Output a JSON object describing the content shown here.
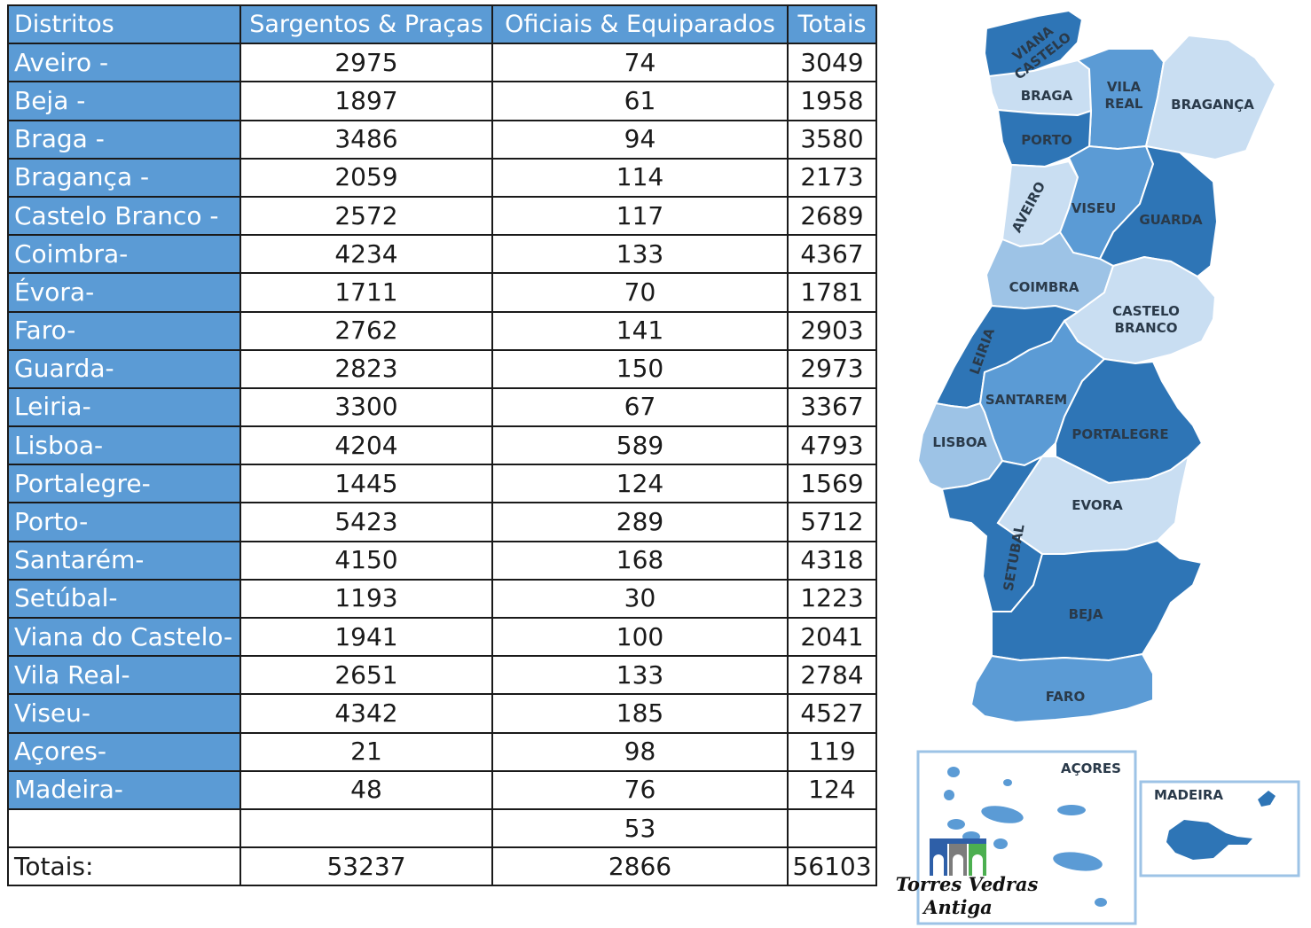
{
  "table": {
    "headers": [
      "Distritos",
      "Sargentos & Praças",
      "Oficiais & Equiparados",
      "Totais"
    ],
    "rows": [
      {
        "district": "Aveiro -",
        "sargentos": "2975",
        "oficiais": "74",
        "total": "3049"
      },
      {
        "district": "Beja -",
        "sargentos": "1897",
        "oficiais": "61",
        "total": "1958"
      },
      {
        "district": "Braga -",
        "sargentos": "3486",
        "oficiais": "94",
        "total": "3580"
      },
      {
        "district": "Bragança -",
        "sargentos": "2059",
        "oficiais": "114",
        "total": "2173"
      },
      {
        "district": "Castelo Branco -",
        "sargentos": "2572",
        "oficiais": "117",
        "total": "2689"
      },
      {
        "district": "Coimbra-",
        "sargentos": "4234",
        "oficiais": "133",
        "total": "4367"
      },
      {
        "district": "Évora-",
        "sargentos": "1711",
        "oficiais": "70",
        "total": "1781"
      },
      {
        "district": "Faro-",
        "sargentos": "2762",
        "oficiais": "141",
        "total": "2903"
      },
      {
        "district": "Guarda-",
        "sargentos": "2823",
        "oficiais": "150",
        "total": "2973"
      },
      {
        "district": "Leiria-",
        "sargentos": "3300",
        "oficiais": "67",
        "total": "3367"
      },
      {
        "district": "Lisboa-",
        "sargentos": "4204",
        "oficiais": "589",
        "total": "4793"
      },
      {
        "district": "Portalegre-",
        "sargentos": "1445",
        "oficiais": "124",
        "total": "1569"
      },
      {
        "district": "Porto-",
        "sargentos": "5423",
        "oficiais": "289",
        "total": "5712"
      },
      {
        "district": "Santarém-",
        "sargentos": "4150",
        "oficiais": "168",
        "total": "4318"
      },
      {
        "district": "Setúbal-",
        "sargentos": "1193",
        "oficiais": "30",
        "total": "1223"
      },
      {
        "district": "Viana do Castelo-",
        "sargentos": "1941",
        "oficiais": "100",
        "total": "2041"
      },
      {
        "district": "Vila Real-",
        "sargentos": "2651",
        "oficiais": "133",
        "total": "2784"
      },
      {
        "district": "Viseu-",
        "sargentos": "4342",
        "oficiais": "185",
        "total": "4527"
      },
      {
        "district": "Açores-",
        "sargentos": "21",
        "oficiais": "98",
        "total": "119"
      },
      {
        "district": "Madeira-",
        "sargentos": "48",
        "oficiais": "76",
        "total": "124"
      }
    ],
    "extra_row": {
      "district": "",
      "sargentos": "",
      "oficiais": "53",
      "total": ""
    },
    "totals": {
      "label": "Totais:",
      "sargentos": "53237",
      "oficiais": "2866",
      "total": "56103"
    }
  },
  "map": {
    "labels": {
      "viana_1": "VIANA",
      "viana_2": "CASTELO",
      "braga": "BRAGA",
      "vila_real_1": "VILA",
      "vila_real_2": "REAL",
      "braganca": "BRAGANÇA",
      "porto": "PORTO",
      "aveiro": "AVEIRO",
      "viseu": "VISEU",
      "guarda": "GUARDA",
      "coimbra": "COIMBRA",
      "castelo_branco_1": "CASTELO",
      "castelo_branco_2": "BRANCO",
      "leiria": "LEIRIA",
      "santarem": "SANTAREM",
      "lisboa": "LISBOA",
      "portalegre": "PORTALEGRE",
      "evora": "EVORA",
      "setubal": "SETUBAL",
      "beja": "BEJA",
      "faro": "FARO",
      "acores": "AÇORES",
      "madeira": "MADEIRA"
    },
    "logo_line1": "Torres Vedras",
    "logo_line2": "Antiga",
    "colors": {
      "dark": "#2e75b6",
      "mid": "#5b9bd5",
      "light": "#9dc3e6",
      "pale": "#c9def2",
      "header": "#5b9bd5"
    }
  }
}
